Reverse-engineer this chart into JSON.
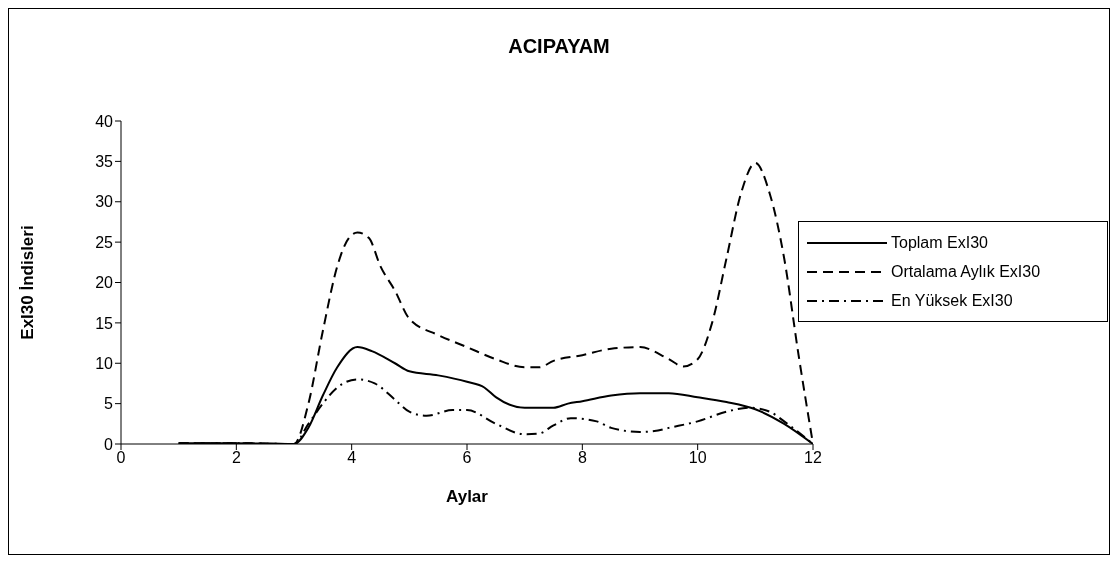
{
  "chart_data": {
    "type": "line",
    "title": "ACIPAYAM",
    "xlabel": "Aylar",
    "ylabel": "ExI30 İndisleri",
    "xlim": [
      0,
      12
    ],
    "xticks": [
      0,
      2,
      4,
      6,
      8,
      10,
      12
    ],
    "ylim": [
      0,
      40
    ],
    "yticks": [
      0,
      5,
      10,
      15,
      20,
      25,
      30,
      35,
      40
    ],
    "grid": false,
    "legend": "right",
    "marker": "none",
    "series": [
      {
        "name": "Toplam ExI30",
        "color": "#000000",
        "line_style": "solid",
        "x": [
          1,
          2,
          3,
          3.25,
          3.5,
          3.75,
          4.1,
          4.35,
          4.75,
          5,
          5.5,
          6,
          6.3,
          6.5,
          7,
          7.5,
          7.75,
          8,
          8.5,
          9,
          9.5,
          10,
          10.5,
          11,
          11.5,
          12
        ],
        "values": [
          0.1,
          0.1,
          0,
          2,
          6,
          9.5,
          12,
          11.5,
          10,
          9,
          8.5,
          7.7,
          7,
          5.8,
          4.5,
          4.5,
          5,
          5.3,
          6,
          6.3,
          6.3,
          5.8,
          5.2,
          4.3,
          2.5,
          0
        ]
      },
      {
        "name": "Ortalama Aylık ExI30",
        "color": "#000000",
        "line_style": "dashed",
        "x": [
          1,
          2,
          3,
          3.25,
          3.5,
          3.75,
          3.95,
          4.1,
          4.3,
          4.5,
          4.75,
          5,
          5.5,
          6,
          6.5,
          7,
          7.25,
          7.5,
          8,
          8.5,
          9,
          9.5,
          9.75,
          10,
          10.25,
          10.5,
          10.75,
          11,
          11.25,
          11.5,
          11.75,
          12
        ],
        "values": [
          0.1,
          0.1,
          0,
          5,
          14,
          22,
          25.5,
          26.2,
          25.5,
          22,
          19,
          15.5,
          13.5,
          12,
          10.5,
          9.5,
          9.5,
          10.3,
          11,
          11.8,
          12,
          10.5,
          9.6,
          10.5,
          15,
          23,
          31,
          34.8,
          31,
          23,
          11,
          0
        ]
      },
      {
        "name": "En Yüksek ExI30",
        "color": "#000000",
        "line_style": "dashdot",
        "x": [
          1,
          2,
          3,
          3.25,
          3.5,
          3.75,
          4.1,
          4.4,
          4.75,
          5,
          5.3,
          5.75,
          6,
          6.5,
          7,
          7.25,
          7.5,
          7.8,
          8.25,
          8.5,
          9,
          9.25,
          9.5,
          10,
          10.5,
          10.9,
          11.25,
          11.5,
          12
        ],
        "values": [
          0.1,
          0.1,
          0,
          2.5,
          5,
          7,
          8,
          7.5,
          5.5,
          4,
          3.5,
          4.2,
          4.2,
          2.5,
          1.2,
          1.3,
          2.3,
          3.2,
          2.8,
          2,
          1.5,
          1.6,
          2,
          2.8,
          4,
          4.5,
          4,
          2.8,
          0
        ]
      }
    ]
  }
}
